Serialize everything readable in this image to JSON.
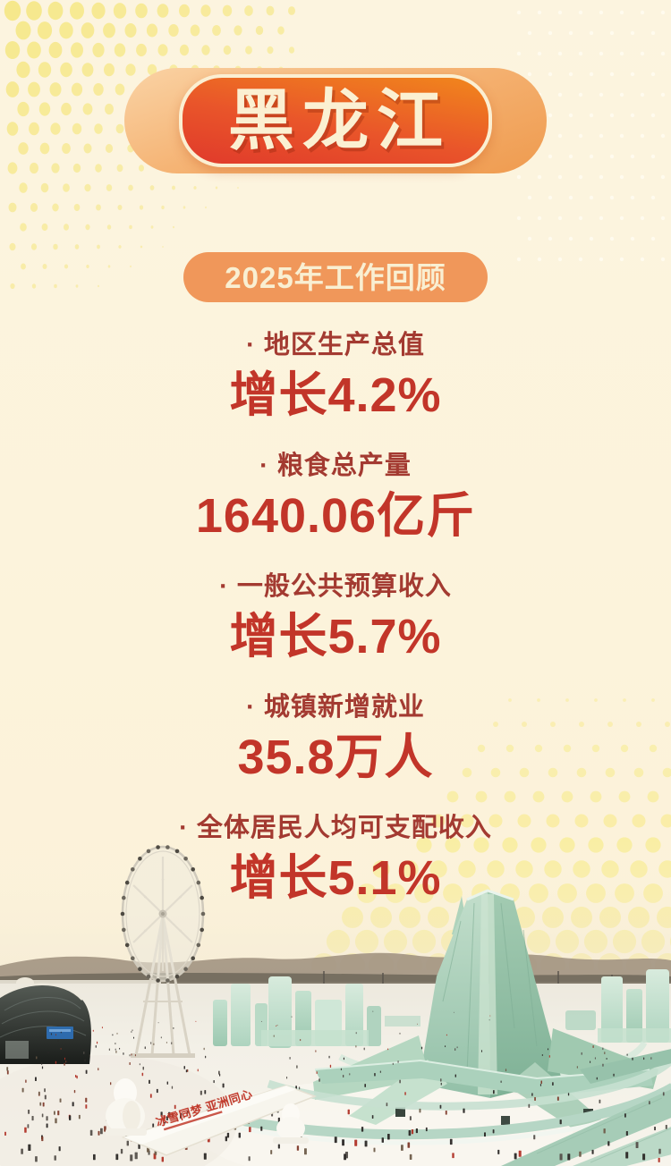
{
  "poster": {
    "title_badge": {
      "label": "黑龙江"
    },
    "section_badge": {
      "label": "2025年工作回顾"
    },
    "stats": [
      {
        "label": "· 地区生产总值",
        "value": "增长4.2%"
      },
      {
        "label": "· 粮食总产量",
        "value": "1640.06亿斤"
      },
      {
        "label": "· 一般公共预算收入",
        "value": "增长5.7%"
      },
      {
        "label": "· 城镇新增就业",
        "value": "35.8万人"
      },
      {
        "label": "· 全体居民人均可支配收入",
        "value": "增长5.1%"
      }
    ],
    "photo": {
      "sign_text": "冰雪同梦 亚洲同心"
    },
    "colors": {
      "background_cream": "#FCF3DC",
      "badge_gradient_top": "#F1871C",
      "badge_gradient_bottom": "#E03A2B",
      "badge_glow_orange": "#F5B475",
      "section_badge_orange": "#F0975A",
      "badge_text_cream": "#FBF0D2",
      "stat_label_maroon": "#A33A31",
      "stat_value_red": "#C23529",
      "halftone_dot_yellow": "#F7E995",
      "ice_mint": "#A9CFB8",
      "sign_red": "#C13A2C"
    }
  }
}
